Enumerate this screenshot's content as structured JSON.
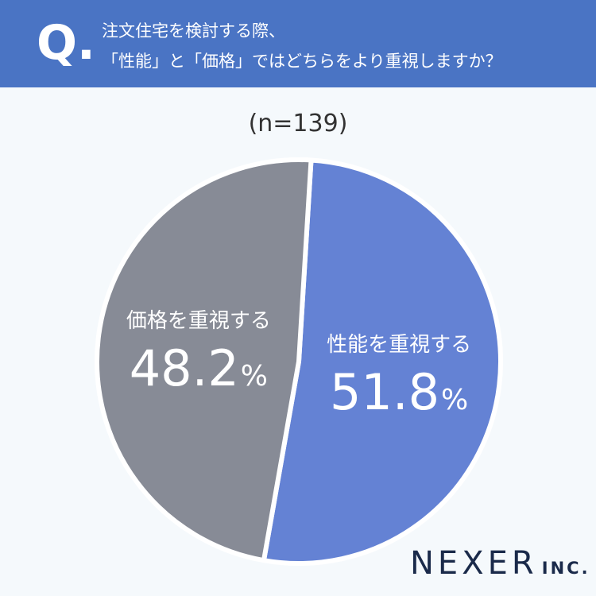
{
  "question": {
    "mark": "Q.",
    "line1": "注文住宅を検討する際、",
    "line2": "「性能」と「価格」ではどちらをより重視しますか？"
  },
  "sample_size": "(n=139)",
  "chart_data": {
    "type": "pie",
    "slices": [
      {
        "label": "性能を重視する",
        "value": 51.8,
        "display": "51.8",
        "unit": "%",
        "color": "#6482d4"
      },
      {
        "label": "価格を重視する",
        "value": 48.2,
        "display": "48.2",
        "unit": "%",
        "color": "#878b96"
      }
    ],
    "start_angle_deg": 0,
    "direction": "clockwise",
    "separator_color": "#ffffff"
  },
  "logo": {
    "main": "NEXER",
    "suffix": "INC."
  },
  "colors": {
    "header_bg": "#4a74c4",
    "page_bg": "#f5f9fc"
  }
}
